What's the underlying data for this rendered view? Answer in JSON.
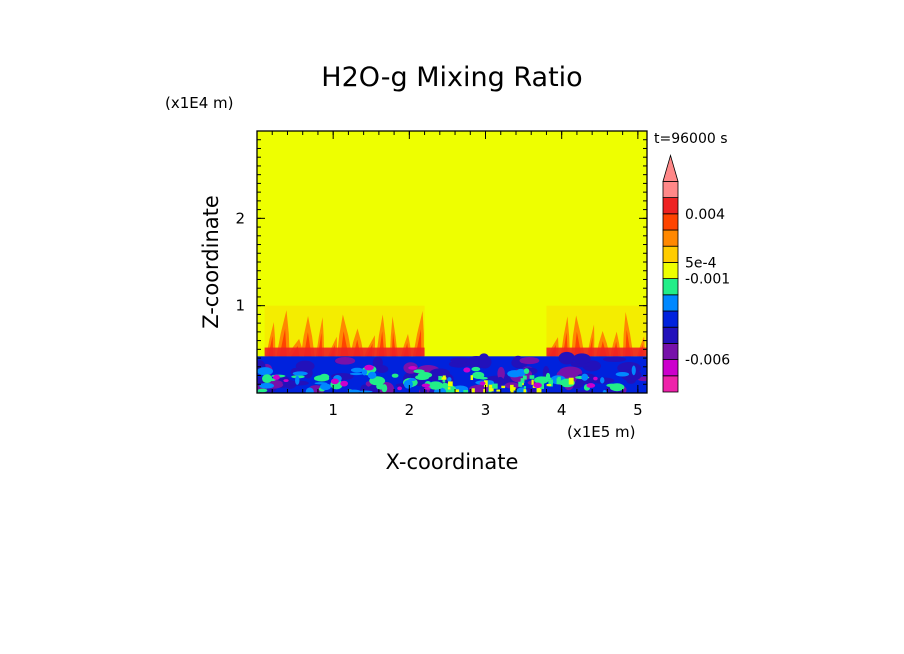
{
  "chart_data": {
    "type": "heatmap",
    "title": "H2O-g Mixing Ratio",
    "xlabel": "X-coordinate",
    "ylabel": "Z-coordinate",
    "x_scale_label": "(x1E5 m)",
    "y_scale_label": "(x1E4 m)",
    "time_label": "t=96000 s",
    "xlim": [
      0,
      5.12
    ],
    "ylim": [
      0,
      3.0
    ],
    "x_ticks": [
      1,
      2,
      3,
      4,
      5
    ],
    "y_ticks": [
      1,
      2
    ],
    "x_tick_labels": [
      "1",
      "2",
      "3",
      "4",
      "5"
    ],
    "y_tick_labels": [
      "1",
      "2"
    ],
    "background_value_color": "#eeff00",
    "colorbar": {
      "levels": [
        {
          "color": "#ee22aa"
        },
        {
          "color": "#cc00cc"
        },
        {
          "color": "#7711aa"
        },
        {
          "color": "#2211bb"
        },
        {
          "color": "#0022dd"
        },
        {
          "color": "#0088ff"
        },
        {
          "color": "#22ee88"
        },
        {
          "color": "#eeff00"
        },
        {
          "color": "#ffcc00"
        },
        {
          "color": "#ff8800"
        },
        {
          "color": "#ff4400"
        },
        {
          "color": "#ee2222"
        },
        {
          "color": "#ff8888"
        }
      ],
      "extend_color": "#ff8888",
      "tick_labels": [
        "0.004",
        "5e-4",
        "-0.001",
        "-0.006"
      ]
    },
    "regions": [
      {
        "name": "moist-layer",
        "z_range": [
          0,
          0.42
        ],
        "dominant_color": "#0022dd"
      },
      {
        "name": "plumes-left",
        "x_range": [
          0.1,
          2.2
        ],
        "z_range": [
          0.42,
          1.0
        ],
        "dominant_color": "#ff8800"
      },
      {
        "name": "plumes-right",
        "x_range": [
          3.8,
          5.12
        ],
        "z_range": [
          0.42,
          1.0
        ],
        "dominant_color": "#ff8800"
      },
      {
        "name": "dry-aloft",
        "z_range": [
          1.0,
          3.0
        ],
        "dominant_color": "#eeff00"
      }
    ]
  }
}
